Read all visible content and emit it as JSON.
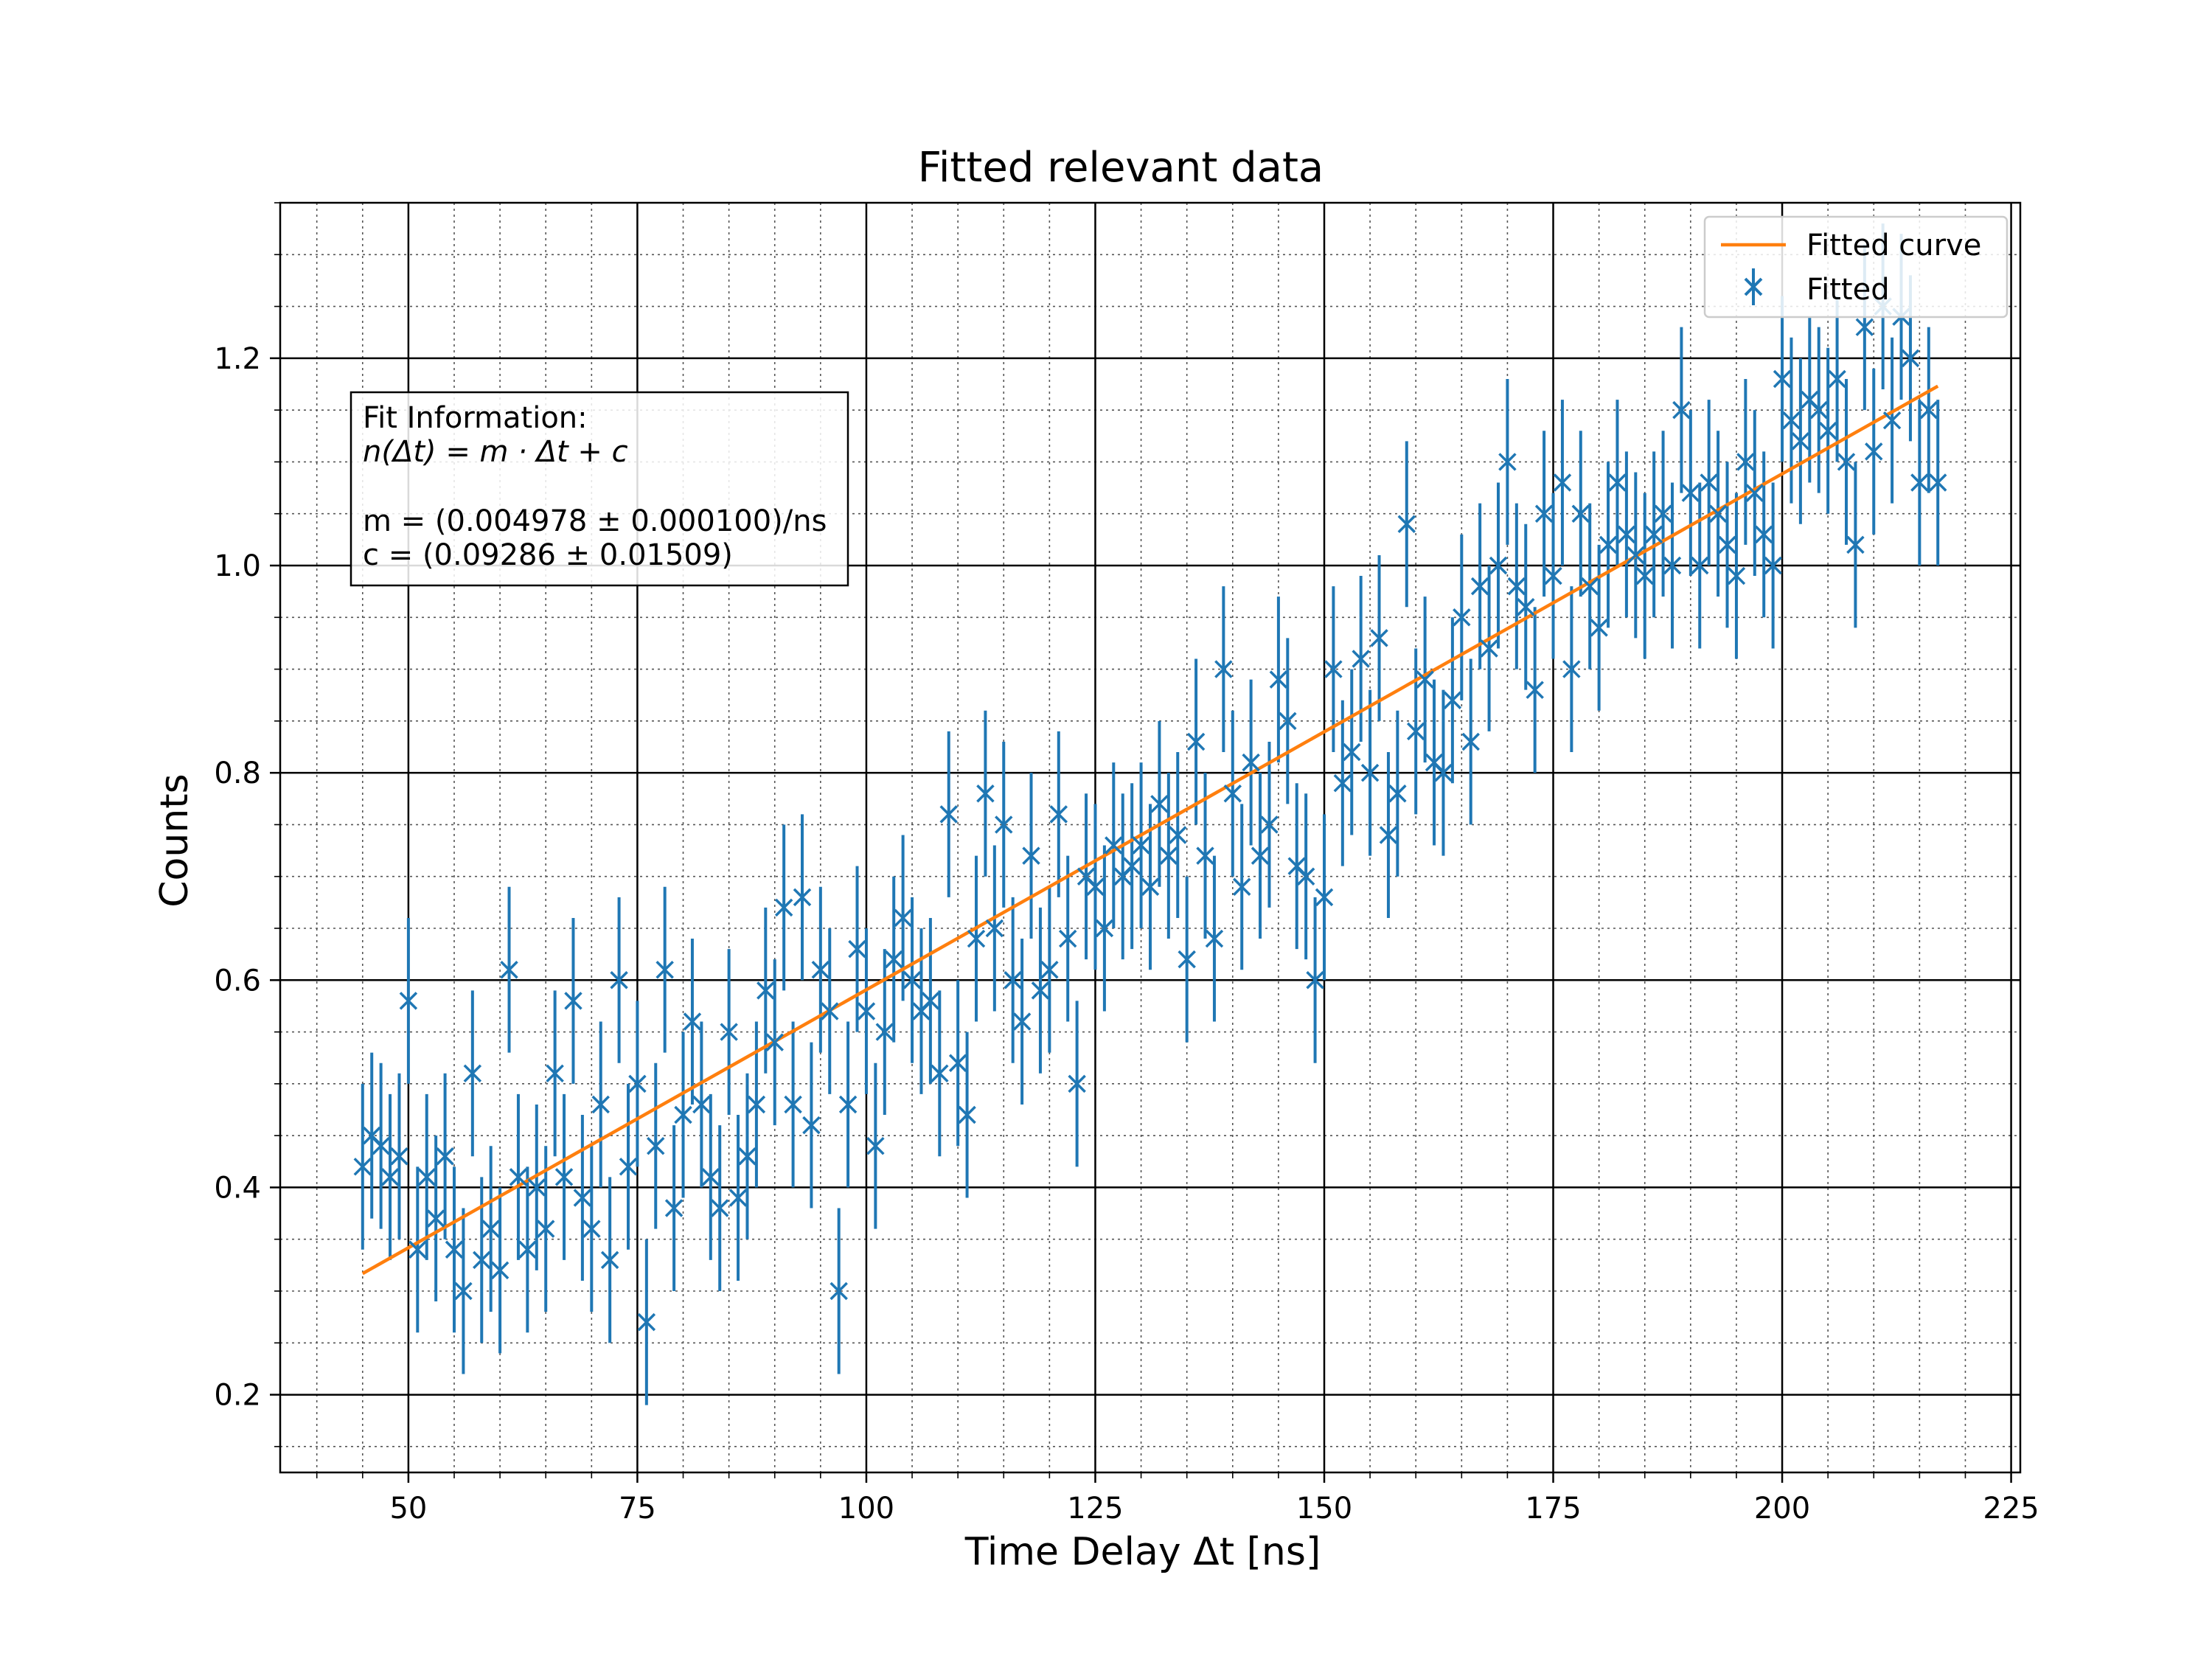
{
  "chart_data": {
    "type": "scatter",
    "title": "Fitted relevant data",
    "xlabel": "Time Delay Δt [ns]",
    "ylabel": "Counts",
    "xlim": [
      36,
      226
    ],
    "ylim": [
      0.125,
      1.35
    ],
    "xticks": [
      50,
      75,
      100,
      125,
      150,
      175,
      200,
      225
    ],
    "yticks": [
      0.2,
      0.4,
      0.6,
      0.8,
      1.0,
      1.2
    ],
    "xtick_labels": [
      "50",
      "75",
      "100",
      "125",
      "150",
      "175",
      "200",
      "225"
    ],
    "ytick_labels": [
      "0.2",
      "0.4",
      "0.6",
      "0.8",
      "1.0",
      "1.2"
    ],
    "grid": {
      "major": true,
      "minor": true
    },
    "legend": {
      "position": "top-right",
      "entries": [
        {
          "label": "Fitted curve",
          "kind": "line",
          "color": "#ff7f0e"
        },
        {
          "label": "Fitted",
          "kind": "errorbar-marker",
          "color": "#1f77b4"
        }
      ]
    },
    "annotation": {
      "lines": [
        "Fit Information:",
        "n(Δt) = m · Δt + c",
        "",
        "m = (0.004978 ± 0.000100)/ns",
        "c = (0.09286 ± 0.01509)"
      ]
    },
    "series": [
      {
        "name": "Fitted curve",
        "kind": "line",
        "color": "#ff7f0e",
        "x": [
          45,
          217
        ],
        "y": [
          0.3169,
          1.1731
        ]
      },
      {
        "name": "Fitted",
        "kind": "errorbar",
        "color": "#1f77b4",
        "yerr": 0.08,
        "x": [
          45,
          46,
          47,
          48,
          49,
          50,
          51,
          52,
          53,
          54,
          55,
          56,
          57,
          58,
          59,
          60,
          61,
          62,
          63,
          64,
          65,
          66,
          67,
          68,
          69,
          70,
          71,
          72,
          73,
          74,
          75,
          76,
          77,
          78,
          79,
          80,
          81,
          82,
          83,
          84,
          85,
          86,
          87,
          88,
          89,
          90,
          91,
          92,
          93,
          94,
          95,
          96,
          97,
          98,
          99,
          100,
          101,
          102,
          103,
          104,
          105,
          106,
          107,
          108,
          109,
          110,
          111,
          112,
          113,
          114,
          115,
          116,
          117,
          118,
          119,
          120,
          121,
          122,
          123,
          124,
          125,
          126,
          127,
          128,
          129,
          130,
          131,
          132,
          133,
          134,
          135,
          136,
          137,
          138,
          139,
          140,
          141,
          142,
          143,
          144,
          145,
          146,
          147,
          148,
          149,
          150,
          151,
          152,
          153,
          154,
          155,
          156,
          157,
          158,
          159,
          160,
          161,
          162,
          163,
          164,
          165,
          166,
          167,
          168,
          169,
          170,
          171,
          172,
          173,
          174,
          175,
          176,
          177,
          178,
          179,
          180,
          181,
          182,
          183,
          184,
          185,
          186,
          187,
          188,
          189,
          190,
          191,
          192,
          193,
          194,
          195,
          196,
          197,
          198,
          199,
          200,
          201,
          202,
          203,
          204,
          205,
          206,
          207,
          208,
          209,
          210,
          211,
          212,
          213,
          214,
          215,
          216,
          217
        ],
        "y": [
          0.42,
          0.45,
          0.44,
          0.41,
          0.43,
          0.58,
          0.34,
          0.41,
          0.37,
          0.43,
          0.34,
          0.3,
          0.51,
          0.33,
          0.36,
          0.32,
          0.61,
          0.41,
          0.34,
          0.4,
          0.36,
          0.51,
          0.41,
          0.58,
          0.39,
          0.36,
          0.48,
          0.33,
          0.6,
          0.42,
          0.5,
          0.27,
          0.44,
          0.61,
          0.38,
          0.47,
          0.56,
          0.48,
          0.41,
          0.38,
          0.55,
          0.39,
          0.43,
          0.48,
          0.59,
          0.54,
          0.67,
          0.48,
          0.68,
          0.46,
          0.61,
          0.57,
          0.3,
          0.48,
          0.63,
          0.57,
          0.44,
          0.55,
          0.62,
          0.66,
          0.6,
          0.57,
          0.58,
          0.51,
          0.76,
          0.52,
          0.47,
          0.64,
          0.78,
          0.65,
          0.75,
          0.6,
          0.56,
          0.72,
          0.59,
          0.61,
          0.76,
          0.64,
          0.5,
          0.7,
          0.69,
          0.65,
          0.73,
          0.7,
          0.71,
          0.73,
          0.69,
          0.77,
          0.72,
          0.74,
          0.62,
          0.83,
          0.72,
          0.64,
          0.9,
          0.78,
          0.69,
          0.81,
          0.72,
          0.75,
          0.89,
          0.85,
          0.71,
          0.7,
          0.6,
          0.68,
          0.9,
          0.79,
          0.82,
          0.91,
          0.8,
          0.93,
          0.74,
          0.78,
          1.04,
          0.84,
          0.89,
          0.81,
          0.8,
          0.87,
          0.95,
          0.83,
          0.98,
          0.92,
          1.0,
          1.1,
          0.98,
          0.96,
          0.88,
          1.05,
          0.99,
          1.08,
          0.9,
          1.05,
          0.98,
          0.94,
          1.02,
          1.08,
          1.03,
          1.01,
          0.99,
          1.03,
          1.05,
          1.0,
          1.15,
          1.07,
          1.0,
          1.08,
          1.05,
          1.02,
          0.99,
          1.1,
          1.07,
          1.03,
          1.0,
          1.18,
          1.14,
          1.12,
          1.16,
          1.15,
          1.13,
          1.18,
          1.1,
          1.02,
          1.23,
          1.11,
          1.25,
          1.14,
          1.24,
          1.2,
          1.08,
          1.15,
          1.08
        ]
      }
    ]
  }
}
